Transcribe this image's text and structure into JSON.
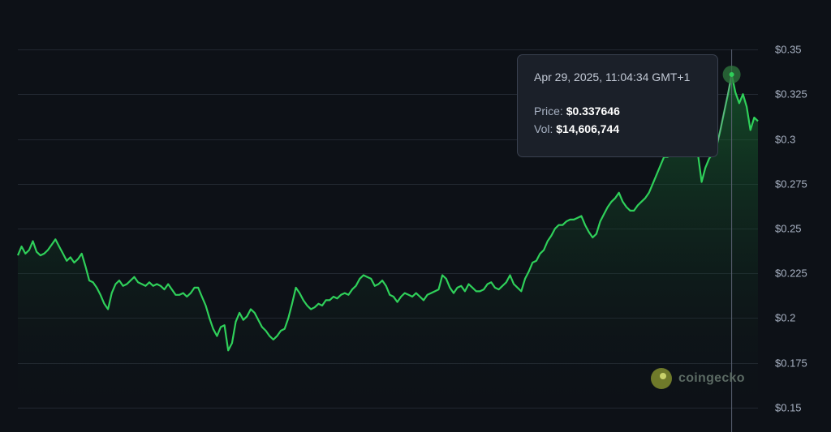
{
  "chart_data": {
    "type": "area",
    "title": "",
    "xlabel": "",
    "ylabel": "",
    "ylim": [
      0.15,
      0.35
    ],
    "yticks": [
      "$0.35",
      "$0.325",
      "$0.3",
      "$0.275",
      "$0.25",
      "$0.225",
      "$0.2",
      "$0.175",
      "$0.15"
    ],
    "ytick_values": [
      0.35,
      0.325,
      0.3,
      0.275,
      0.25,
      0.225,
      0.2,
      0.175,
      0.15
    ],
    "grid": true,
    "series": [
      {
        "values": [
          0.235,
          0.24,
          0.236,
          0.238,
          0.243,
          0.237,
          0.235,
          0.236,
          0.238,
          0.241,
          0.244,
          0.24,
          0.236,
          0.232,
          0.234,
          0.231,
          0.233,
          0.236,
          0.229,
          0.221,
          0.22,
          0.217,
          0.213,
          0.208,
          0.205,
          0.214,
          0.219,
          0.221,
          0.218,
          0.219,
          0.221,
          0.223,
          0.22,
          0.219,
          0.218,
          0.22,
          0.218,
          0.219,
          0.218,
          0.216,
          0.219,
          0.216,
          0.213,
          0.213,
          0.214,
          0.212,
          0.214,
          0.217,
          0.217,
          0.212,
          0.207,
          0.2,
          0.194,
          0.19,
          0.195,
          0.196,
          0.182,
          0.186,
          0.198,
          0.203,
          0.199,
          0.201,
          0.205,
          0.203,
          0.199,
          0.195,
          0.193,
          0.19,
          0.188,
          0.19,
          0.193,
          0.194,
          0.2,
          0.208,
          0.217,
          0.214,
          0.21,
          0.207,
          0.205,
          0.206,
          0.208,
          0.207,
          0.21,
          0.21,
          0.212,
          0.211,
          0.213,
          0.214,
          0.213,
          0.216,
          0.218,
          0.222,
          0.224,
          0.223,
          0.222,
          0.218,
          0.219,
          0.221,
          0.218,
          0.213,
          0.212,
          0.209,
          0.212,
          0.214,
          0.213,
          0.212,
          0.214,
          0.212,
          0.21,
          0.213,
          0.214,
          0.215,
          0.216,
          0.224,
          0.222,
          0.217,
          0.214,
          0.217,
          0.218,
          0.215,
          0.219,
          0.217,
          0.215,
          0.215,
          0.216,
          0.219,
          0.22,
          0.217,
          0.216,
          0.218,
          0.22,
          0.224,
          0.219,
          0.217,
          0.215,
          0.222,
          0.226,
          0.231,
          0.232,
          0.236,
          0.238,
          0.243,
          0.246,
          0.25,
          0.252,
          0.252,
          0.254,
          0.255,
          0.255,
          0.256,
          0.257,
          0.252,
          0.248,
          0.245,
          0.247,
          0.254,
          0.258,
          0.262,
          0.265,
          0.267,
          0.27,
          0.265,
          0.262,
          0.26,
          0.26,
          0.263,
          0.265,
          0.267,
          0.27,
          0.275,
          0.28,
          0.285,
          0.29,
          0.29,
          0.292,
          0.293,
          0.292,
          0.291,
          0.293,
          0.3,
          0.296,
          0.292,
          0.276,
          0.284,
          0.289,
          0.292,
          0.296,
          0.305,
          0.315,
          0.325,
          0.336,
          0.326,
          0.32,
          0.325,
          0.318,
          0.305,
          0.312,
          0.31
        ]
      }
    ]
  },
  "tooltip": {
    "date": "Apr 29, 2025, 11:04:34 GMT+1",
    "price_label": "Price:",
    "price_value": "$0.337646",
    "vol_label": "Vol:",
    "vol_value": "$14,606,744"
  },
  "watermark": {
    "text": "coingecko",
    "icon": "coingecko-logo-icon"
  },
  "colors": {
    "background": "#0d1117",
    "line": "#2fd05a",
    "grid": "#222831",
    "crosshair": "#5a6172",
    "marker": "#2f7a3f"
  }
}
